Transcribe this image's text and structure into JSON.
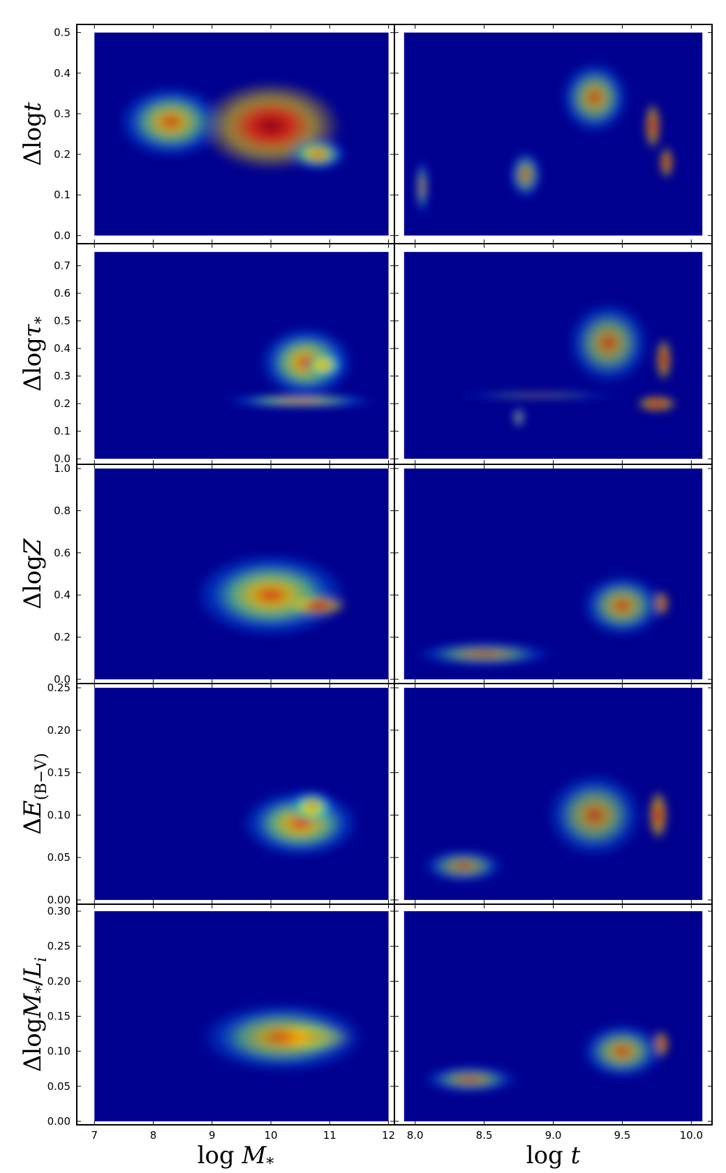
{
  "colors": {
    "low": "#00008f",
    "mid_low": "#0080ff",
    "mid": "#7fff7f",
    "mid_high": "#ffdf00",
    "high": "#ff3000",
    "peak": "#a00000",
    "frame": "#000000"
  },
  "chart_data": {
    "type": "heatmap",
    "colormap": "jet",
    "grid": false,
    "columns": [
      {
        "xlabel": "log M_*",
        "xlim": [
          6.7,
          12.1
        ],
        "xticks": [
          "7",
          "8",
          "9",
          "10",
          "11",
          "12"
        ],
        "xtick_values": [
          7,
          8,
          9,
          10,
          11,
          12
        ]
      },
      {
        "xlabel": "log t",
        "xlim": [
          7.85,
          10.15
        ],
        "xticks": [
          "8.0",
          "8.5",
          "9.0",
          "9.5",
          "10.0"
        ],
        "xtick_values": [
          8.0,
          8.5,
          9.0,
          9.5,
          10.0
        ]
      }
    ],
    "rows": [
      {
        "ylabel": "Δlogt",
        "ylim": [
          -0.02,
          0.52
        ],
        "yticks": [
          "0.0",
          "0.1",
          "0.2",
          "0.3",
          "0.4",
          "0.5"
        ],
        "ytick_values": [
          0,
          0.1,
          0.2,
          0.3,
          0.4,
          0.5
        ]
      },
      {
        "ylabel": "Δlogτ*",
        "ylim": [
          -0.02,
          0.78
        ],
        "yticks": [
          "0.0",
          "0.1",
          "0.2",
          "0.3",
          "0.4",
          "0.5",
          "0.6",
          "0.7"
        ],
        "ytick_values": [
          0,
          0.1,
          0.2,
          0.3,
          0.4,
          0.5,
          0.6,
          0.7
        ]
      },
      {
        "ylabel": "ΔlogZ",
        "ylim": [
          -0.02,
          1.02
        ],
        "yticks": [
          "0.0",
          "0.2",
          "0.4",
          "0.6",
          "0.8",
          "1.0"
        ],
        "ytick_values": [
          0,
          0.2,
          0.4,
          0.6,
          0.8,
          1.0
        ]
      },
      {
        "ylabel": "ΔE(B−V)",
        "ylim": [
          -0.005,
          0.255
        ],
        "yticks": [
          "0.00",
          "0.05",
          "0.10",
          "0.15",
          "0.20",
          "0.25"
        ],
        "ytick_values": [
          0,
          0.05,
          0.1,
          0.15,
          0.2,
          0.25
        ]
      },
      {
        "ylabel": "ΔlogM*/Li",
        "ylim": [
          -0.005,
          0.31
        ],
        "yticks": [
          "0.00",
          "0.05",
          "0.10",
          "0.15",
          "0.20",
          "0.25",
          "0.30"
        ],
        "ytick_values": [
          0,
          0.05,
          0.1,
          0.15,
          0.2,
          0.25,
          0.3
        ]
      }
    ],
    "panels": [
      {
        "row": 0,
        "col": 0,
        "extent": [
          7.0,
          12.0,
          0.0,
          0.5
        ],
        "blobs": [
          {
            "x": 8.3,
            "y": 0.28,
            "sx": 0.9,
            "sy": 0.09,
            "w": 0.8
          },
          {
            "x": 10.0,
            "y": 0.27,
            "sx": 1.2,
            "sy": 0.11,
            "w": 1.0
          },
          {
            "x": 10.8,
            "y": 0.2,
            "sx": 0.5,
            "sy": 0.04,
            "w": 0.9
          }
        ]
      },
      {
        "row": 0,
        "col": 1,
        "extent": [
          7.92,
          10.08,
          0.0,
          0.5
        ],
        "blobs": [
          {
            "x": 9.3,
            "y": 0.34,
            "sx": 0.25,
            "sy": 0.09,
            "w": 0.6
          },
          {
            "x": 9.72,
            "y": 0.27,
            "sx": 0.06,
            "sy": 0.06,
            "w": 1.0
          },
          {
            "x": 9.82,
            "y": 0.18,
            "sx": 0.05,
            "sy": 0.04,
            "w": 1.1
          },
          {
            "x": 8.8,
            "y": 0.15,
            "sx": 0.12,
            "sy": 0.06,
            "w": 0.5
          },
          {
            "x": 8.05,
            "y": 0.12,
            "sx": 0.05,
            "sy": 0.07,
            "w": 0.4
          }
        ]
      },
      {
        "row": 1,
        "col": 0,
        "extent": [
          7.0,
          12.0,
          0.0,
          0.75
        ],
        "blobs": [
          {
            "x": 10.5,
            "y": 0.21,
            "sx": 1.3,
            "sy": 0.025,
            "w": 0.9
          },
          {
            "x": 10.6,
            "y": 0.35,
            "sx": 0.8,
            "sy": 0.13,
            "w": 0.9
          },
          {
            "x": 10.9,
            "y": 0.34,
            "sx": 0.35,
            "sy": 0.05,
            "w": 0.8
          }
        ]
      },
      {
        "row": 1,
        "col": 1,
        "extent": [
          7.92,
          10.08,
          0.0,
          0.75
        ],
        "blobs": [
          {
            "x": 8.9,
            "y": 0.23,
            "sx": 0.6,
            "sy": 0.008,
            "w": 0.7
          },
          {
            "x": 9.75,
            "y": 0.2,
            "sx": 0.15,
            "sy": 0.03,
            "w": 1.1
          },
          {
            "x": 9.8,
            "y": 0.36,
            "sx": 0.06,
            "sy": 0.08,
            "w": 1.0
          },
          {
            "x": 9.4,
            "y": 0.42,
            "sx": 0.3,
            "sy": 0.15,
            "w": 0.5
          },
          {
            "x": 8.75,
            "y": 0.15,
            "sx": 0.05,
            "sy": 0.04,
            "w": 0.4
          }
        ]
      },
      {
        "row": 2,
        "col": 0,
        "extent": [
          7.0,
          12.0,
          0.0,
          1.0
        ],
        "blobs": [
          {
            "x": 10.0,
            "y": 0.4,
            "sx": 1.3,
            "sy": 0.2,
            "w": 0.9
          },
          {
            "x": 10.8,
            "y": 0.35,
            "sx": 0.5,
            "sy": 0.05,
            "w": 1.0
          }
        ]
      },
      {
        "row": 2,
        "col": 1,
        "extent": [
          7.92,
          10.08,
          0.0,
          1.0
        ],
        "blobs": [
          {
            "x": 9.78,
            "y": 0.36,
            "sx": 0.06,
            "sy": 0.06,
            "w": 1.1
          },
          {
            "x": 9.5,
            "y": 0.35,
            "sx": 0.3,
            "sy": 0.15,
            "w": 0.6
          },
          {
            "x": 8.5,
            "y": 0.12,
            "sx": 0.5,
            "sy": 0.06,
            "w": 0.4
          }
        ]
      },
      {
        "row": 3,
        "col": 0,
        "extent": [
          7.0,
          12.0,
          0.0,
          0.25
        ],
        "blobs": [
          {
            "x": 10.5,
            "y": 0.09,
            "sx": 1.0,
            "sy": 0.04,
            "w": 0.9
          },
          {
            "x": 10.7,
            "y": 0.11,
            "sx": 0.4,
            "sy": 0.02,
            "w": 0.9
          }
        ]
      },
      {
        "row": 3,
        "col": 1,
        "extent": [
          7.92,
          10.08,
          0.0,
          0.25
        ],
        "blobs": [
          {
            "x": 9.76,
            "y": 0.1,
            "sx": 0.07,
            "sy": 0.03,
            "w": 1.1
          },
          {
            "x": 9.3,
            "y": 0.1,
            "sx": 0.35,
            "sy": 0.05,
            "w": 0.5
          },
          {
            "x": 8.35,
            "y": 0.04,
            "sx": 0.3,
            "sy": 0.02,
            "w": 0.4
          }
        ]
      },
      {
        "row": 4,
        "col": 0,
        "extent": [
          7.0,
          12.0,
          0.0,
          0.3
        ],
        "blobs": [
          {
            "x": 10.7,
            "y": 0.12,
            "sx": 0.7,
            "sy": 0.02,
            "w": 1.0
          },
          {
            "x": 10.2,
            "y": 0.12,
            "sx": 1.4,
            "sy": 0.05,
            "w": 0.7
          }
        ]
      },
      {
        "row": 4,
        "col": 1,
        "extent": [
          7.92,
          10.08,
          0.0,
          0.3
        ],
        "blobs": [
          {
            "x": 9.78,
            "y": 0.11,
            "sx": 0.06,
            "sy": 0.02,
            "w": 1.1
          },
          {
            "x": 9.5,
            "y": 0.1,
            "sx": 0.3,
            "sy": 0.04,
            "w": 0.6
          },
          {
            "x": 8.4,
            "y": 0.06,
            "sx": 0.35,
            "sy": 0.02,
            "w": 0.4
          }
        ]
      }
    ]
  }
}
